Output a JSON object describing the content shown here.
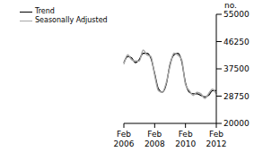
{
  "chart_data": {
    "type": "line",
    "y_label": "no.",
    "categories": [
      "Feb 2006",
      null,
      null,
      null,
      null,
      null,
      null,
      null,
      "Feb 2008",
      null,
      null,
      null,
      null,
      null,
      null,
      null,
      "Feb 2010",
      null,
      null,
      null,
      null,
      null,
      null,
      null,
      "Feb 2012"
    ],
    "series": [
      {
        "name": "Trend",
        "color": "#000000",
        "values": [
          39500,
          41500,
          41000,
          39500,
          40500,
          42500,
          42500,
          41000,
          36000,
          31000,
          30000,
          32500,
          39000,
          42000,
          42500,
          40000,
          33000,
          30000,
          29500,
          29500,
          29000,
          28500,
          29000,
          30500,
          30500
        ]
      },
      {
        "name": "Seasonally Adjusted",
        "color": "#a6a6a6",
        "values": [
          39000,
          42000,
          40500,
          40000,
          40000,
          43500,
          42000,
          41500,
          35500,
          30500,
          30000,
          33000,
          38500,
          42500,
          42000,
          40500,
          32500,
          30500,
          29000,
          30000,
          29500,
          28000,
          29500,
          31000,
          29500
        ]
      }
    ],
    "ylim": [
      20000,
      55000
    ],
    "yticks": [
      20000,
      28750,
      37500,
      46250,
      55000
    ],
    "legend": "upper left",
    "grid": false
  }
}
